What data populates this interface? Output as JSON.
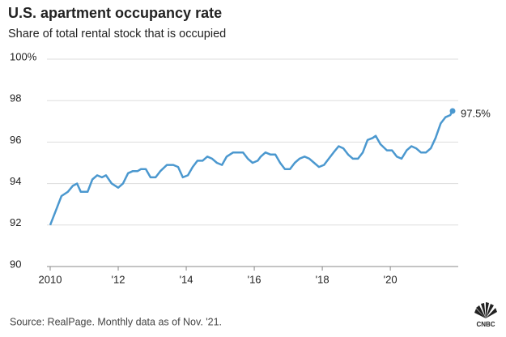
{
  "chart_data": {
    "type": "line",
    "title": "U.S. apartment occupancy rate",
    "subtitle": "Share of total rental stock that is occupied",
    "source": "Source: RealPage. Monthly data as of Nov. '21.",
    "logo": "CNBC",
    "x": [
      2010,
      2010.19,
      2010.33,
      2010.52,
      2010.67,
      2010.79,
      2010.9,
      2011.1,
      2011.24,
      2011.38,
      2011.52,
      2011.64,
      2011.81,
      2012,
      2012.14,
      2012.29,
      2012.43,
      2012.57,
      2012.67,
      2012.81,
      2012.95,
      2013.1,
      2013.24,
      2013.43,
      2013.62,
      2013.76,
      2013.9,
      2014.05,
      2014.19,
      2014.33,
      2014.48,
      2014.62,
      2014.76,
      2014.9,
      2015.05,
      2015.19,
      2015.38,
      2015.52,
      2015.67,
      2015.81,
      2015.95,
      2016.1,
      2016.19,
      2016.33,
      2016.48,
      2016.62,
      2016.76,
      2016.9,
      2017.05,
      2017.19,
      2017.33,
      2017.48,
      2017.62,
      2017.76,
      2017.9,
      2018.05,
      2018.19,
      2018.33,
      2018.48,
      2018.62,
      2018.76,
      2018.9,
      2019.05,
      2019.19,
      2019.33,
      2019.48,
      2019.57,
      2019.71,
      2019.9,
      2020.05,
      2020.19,
      2020.33,
      2020.48,
      2020.62,
      2020.76,
      2020.9,
      2021.05,
      2021.19,
      2021.33,
      2021.48,
      2021.62,
      2021.76,
      2021.83
    ],
    "series": [
      {
        "color": "#4b98cf",
        "values": [
          92.0,
          92.8,
          93.4,
          93.6,
          93.9,
          94.0,
          93.6,
          93.6,
          94.2,
          94.4,
          94.3,
          94.4,
          94.0,
          93.8,
          94.0,
          94.5,
          94.6,
          94.6,
          94.7,
          94.7,
          94.3,
          94.3,
          94.6,
          94.9,
          94.9,
          94.8,
          94.3,
          94.4,
          94.8,
          95.1,
          95.1,
          95.3,
          95.2,
          95.0,
          94.9,
          95.3,
          95.5,
          95.5,
          95.5,
          95.2,
          95.0,
          95.1,
          95.3,
          95.5,
          95.4,
          95.4,
          95.0,
          94.7,
          94.7,
          95.0,
          95.2,
          95.3,
          95.2,
          95.0,
          94.8,
          94.9,
          95.2,
          95.5,
          95.8,
          95.7,
          95.4,
          95.2,
          95.2,
          95.5,
          96.1,
          96.2,
          96.3,
          95.9,
          95.6,
          95.6,
          95.3,
          95.2,
          95.6,
          95.8,
          95.7,
          95.5,
          95.5,
          95.7,
          96.2,
          96.9,
          97.2,
          97.3,
          97.5
        ],
        "value_labels": [
          null,
          null,
          null,
          null,
          null,
          null,
          null,
          null,
          null,
          null,
          null,
          null,
          null,
          null,
          null,
          null,
          null,
          null,
          null,
          null,
          null,
          null,
          null,
          null,
          null,
          null,
          null,
          null,
          null,
          null,
          null,
          null,
          null,
          null,
          null,
          null,
          null,
          null,
          null,
          null,
          null,
          null,
          null,
          null,
          null,
          null,
          null,
          null,
          null,
          null,
          null,
          null,
          null,
          null,
          null,
          null,
          null,
          null,
          null,
          null,
          null,
          null,
          null,
          null,
          null,
          null,
          null,
          null,
          null,
          null,
          null,
          null,
          null,
          null,
          null,
          null,
          null,
          null,
          null,
          null,
          null,
          null,
          "97.5%"
        ]
      }
    ],
    "xlim": [
      2010,
      2021.83
    ],
    "xticks": [
      2010,
      {
        "value": 2012,
        "label": "'12"
      },
      {
        "value": 2014,
        "label": "'14"
      },
      {
        "value": 2016,
        "label": "'16"
      },
      {
        "value": 2018,
        "label": "'18"
      },
      {
        "value": 2020,
        "label": "'20"
      }
    ],
    "ylim": [
      90,
      100
    ],
    "yticks": [
      90,
      92,
      94,
      96,
      98,
      {
        "value": 100,
        "label": "100%"
      }
    ],
    "grid": true
  }
}
